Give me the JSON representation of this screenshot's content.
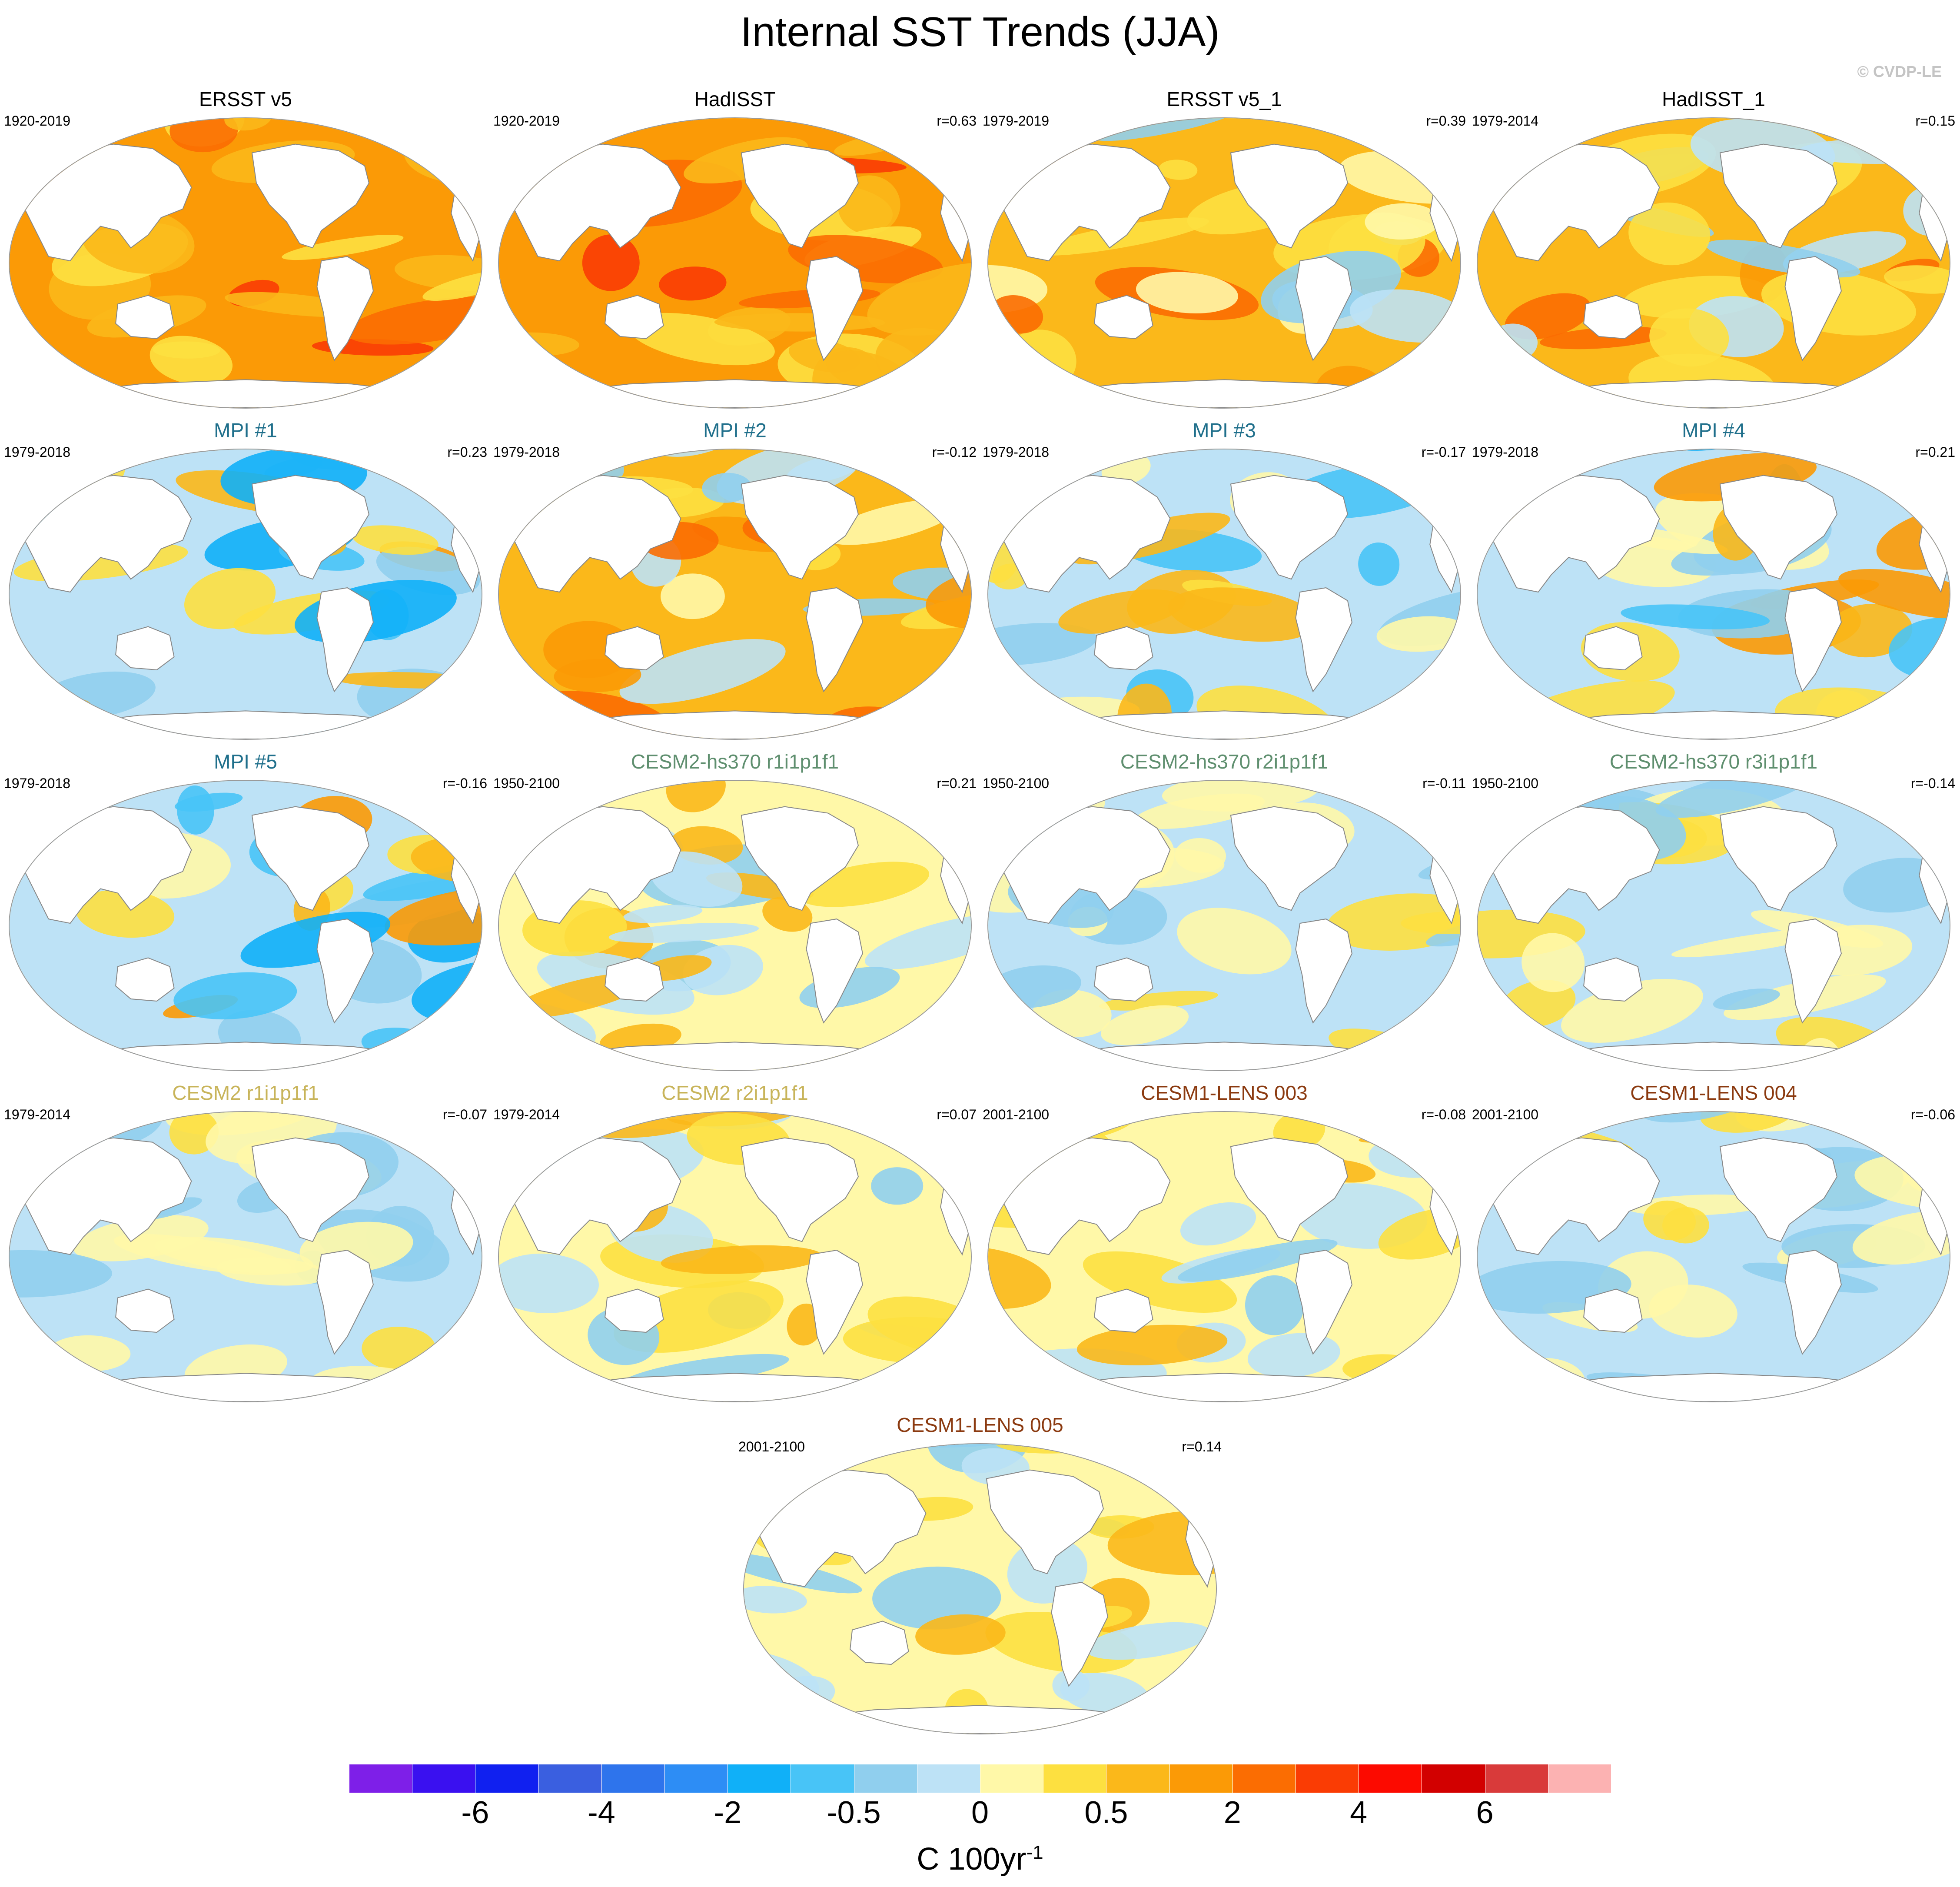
{
  "figure": {
    "title": "Internal SST Trends (JJA)",
    "copyright": "© CVDP-LE"
  },
  "panels": [
    {
      "title": "ERSST v5",
      "title_color": "#000000",
      "period": "1920-2019",
      "r": "",
      "pattern": "warm-strong"
    },
    {
      "title": "HadISST",
      "title_color": "#000000",
      "period": "1920-2019",
      "r": "r=0.63",
      "pattern": "warm-strong"
    },
    {
      "title": "ERSST v5_1",
      "title_color": "#000000",
      "period": "1979-2019",
      "r": "r=0.39",
      "pattern": "warm-mixed"
    },
    {
      "title": "HadISST_1",
      "title_color": "#000000",
      "period": "1979-2014",
      "r": "r=0.15",
      "pattern": "warm-mixed"
    },
    {
      "title": "MPI #1",
      "title_color": "#1f6f8b",
      "period": "1979-2018",
      "r": "r=0.23",
      "pattern": "mixed-strong"
    },
    {
      "title": "MPI #2",
      "title_color": "#1f6f8b",
      "period": "1979-2018",
      "r": "r=-0.12",
      "pattern": "warm-mixed"
    },
    {
      "title": "MPI #3",
      "title_color": "#1f6f8b",
      "period": "1979-2018",
      "r": "r=-0.17",
      "pattern": "cool-mixed"
    },
    {
      "title": "MPI #4",
      "title_color": "#1f6f8b",
      "period": "1979-2018",
      "r": "r=0.21",
      "pattern": "mixed-strong"
    },
    {
      "title": "MPI #5",
      "title_color": "#1f6f8b",
      "period": "1979-2018",
      "r": "r=-0.16",
      "pattern": "mixed-strong"
    },
    {
      "title": "CESM2-hs370 r1i1p1f1",
      "title_color": "#5f8f6f",
      "period": "1950-2100",
      "r": "r=0.21",
      "pattern": "mild"
    },
    {
      "title": "CESM2-hs370 r2i1p1f1",
      "title_color": "#5f8f6f",
      "period": "1950-2100",
      "r": "r=-0.11",
      "pattern": "mild-cool"
    },
    {
      "title": "CESM2-hs370 r3i1p1f1",
      "title_color": "#5f8f6f",
      "period": "1950-2100",
      "r": "r=-0.14",
      "pattern": "mild-cool"
    },
    {
      "title": "CESM2 r1i1p1f1",
      "title_color": "#c8b45a",
      "period": "1979-2014",
      "r": "r=-0.07",
      "pattern": "mild-cool"
    },
    {
      "title": "CESM2 r2i1p1f1",
      "title_color": "#c8b45a",
      "period": "1979-2014",
      "r": "r=0.07",
      "pattern": "mild"
    },
    {
      "title": "CESM1-LENS 003",
      "title_color": "#8b3a10",
      "period": "2001-2100",
      "r": "r=-0.08",
      "pattern": "mild"
    },
    {
      "title": "CESM1-LENS 004",
      "title_color": "#8b3a10",
      "period": "2001-2100",
      "r": "r=-0.06",
      "pattern": "mild-cool"
    },
    {
      "title": "CESM1-LENS 005",
      "title_color": "#8b3a10",
      "period": "2001-2100",
      "r": "r=0.14",
      "pattern": "mild"
    }
  ],
  "colorbar": {
    "colors": [
      "#7e1fe8",
      "#3a10f0",
      "#1020f0",
      "#3a5fe0",
      "#2e74ec",
      "#2d8df5",
      "#10b0f8",
      "#48c4f7",
      "#90cfee",
      "#bde2f6",
      "#fff8a8",
      "#fde040",
      "#fbb81a",
      "#fb9a06",
      "#fb6d02",
      "#fa3c04",
      "#fc0a00",
      "#d20000",
      "#d93a3a",
      "#fcb2b2"
    ],
    "labels": [
      "-6",
      "-4",
      "-2",
      "-0.5",
      "0",
      "0.5",
      "2",
      "4",
      "6"
    ],
    "units_base": "C 100yr",
    "units_exp": "-1"
  }
}
